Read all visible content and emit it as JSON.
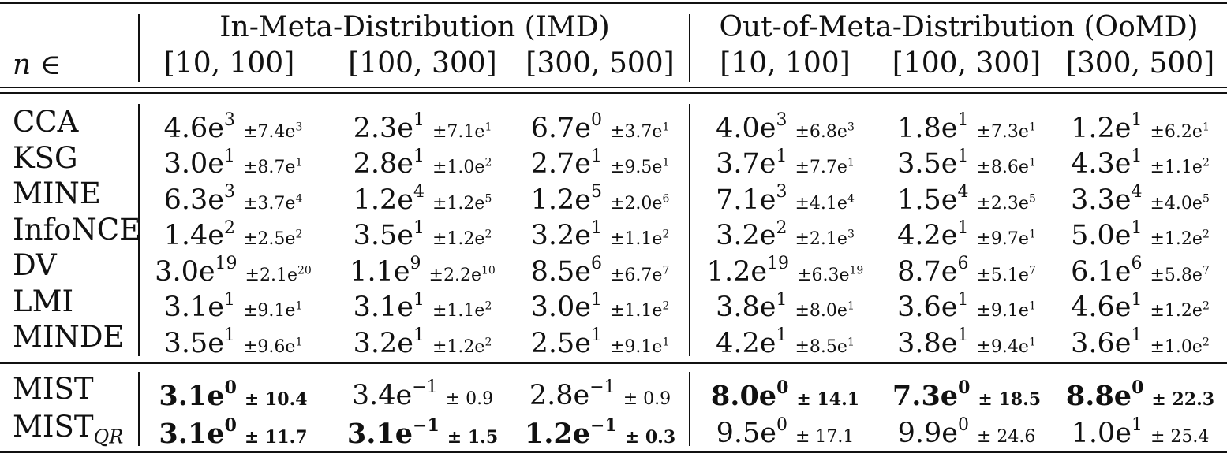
{
  "header": {
    "n_label": "n ∈",
    "imd_title": "In-Meta-Distribution (IMD)",
    "oomd_title": "Out-of-Meta-Distribution (OoMD)",
    "ranges": [
      "[10, 100]",
      "[100, 300]",
      "[300, 500]",
      "[10, 100]",
      "[100, 300]",
      "[300, 500]"
    ]
  },
  "baselines": [
    {
      "name": "CCA",
      "cells": [
        {
          "m": "4.6e",
          "me": "3",
          "s": "±7.4e",
          "se": "3"
        },
        {
          "m": "2.3e",
          "me": "1",
          "s": "±7.1e",
          "se": "1"
        },
        {
          "m": "6.7e",
          "me": "0",
          "s": "±3.7e",
          "se": "1"
        },
        {
          "m": "4.0e",
          "me": "3",
          "s": "±6.8e",
          "se": "3"
        },
        {
          "m": "1.8e",
          "me": "1",
          "s": "±7.3e",
          "se": "1"
        },
        {
          "m": "1.2e",
          "me": "1",
          "s": "±6.2e",
          "se": "1"
        }
      ]
    },
    {
      "name": "KSG",
      "cells": [
        {
          "m": "3.0e",
          "me": "1",
          "s": "±8.7e",
          "se": "1"
        },
        {
          "m": "2.8e",
          "me": "1",
          "s": "±1.0e",
          "se": "2"
        },
        {
          "m": "2.7e",
          "me": "1",
          "s": "±9.5e",
          "se": "1"
        },
        {
          "m": "3.7e",
          "me": "1",
          "s": "±7.7e",
          "se": "1"
        },
        {
          "m": "3.5e",
          "me": "1",
          "s": "±8.6e",
          "se": "1"
        },
        {
          "m": "4.3e",
          "me": "1",
          "s": "±1.1e",
          "se": "2"
        }
      ]
    },
    {
      "name": "MINE",
      "cells": [
        {
          "m": "6.3e",
          "me": "3",
          "s": "±3.7e",
          "se": "4"
        },
        {
          "m": "1.2e",
          "me": "4",
          "s": "±1.2e",
          "se": "5"
        },
        {
          "m": "1.2e",
          "me": "5",
          "s": "±2.0e",
          "se": "6"
        },
        {
          "m": "7.1e",
          "me": "3",
          "s": "±4.1e",
          "se": "4"
        },
        {
          "m": "1.5e",
          "me": "4",
          "s": "±2.3e",
          "se": "5"
        },
        {
          "m": "3.3e",
          "me": "4",
          "s": "±4.0e",
          "se": "5"
        }
      ]
    },
    {
      "name": "InfoNCE",
      "cells": [
        {
          "m": "1.4e",
          "me": "2",
          "s": "±2.5e",
          "se": "2"
        },
        {
          "m": "3.5e",
          "me": "1",
          "s": "±1.2e",
          "se": "2"
        },
        {
          "m": "3.2e",
          "me": "1",
          "s": "±1.1e",
          "se": "2"
        },
        {
          "m": "3.2e",
          "me": "2",
          "s": "±2.1e",
          "se": "3"
        },
        {
          "m": "4.2e",
          "me": "1",
          "s": "±9.7e",
          "se": "1"
        },
        {
          "m": "5.0e",
          "me": "1",
          "s": "±1.2e",
          "se": "2"
        }
      ]
    },
    {
      "name": "DV",
      "cells": [
        {
          "m": "3.0e",
          "me": "19",
          "s": "±2.1e",
          "se": "20"
        },
        {
          "m": "1.1e",
          "me": "9",
          "s": "±2.2e",
          "se": "10"
        },
        {
          "m": "8.5e",
          "me": "6",
          "s": "±6.7e",
          "se": "7"
        },
        {
          "m": "1.2e",
          "me": "19",
          "s": "±6.3e",
          "se": "19"
        },
        {
          "m": "8.7e",
          "me": "6",
          "s": "±5.1e",
          "se": "7"
        },
        {
          "m": "6.1e",
          "me": "6",
          "s": "±5.8e",
          "se": "7"
        }
      ]
    },
    {
      "name": "LMI",
      "cells": [
        {
          "m": "3.1e",
          "me": "1",
          "s": "±9.1e",
          "se": "1"
        },
        {
          "m": "3.1e",
          "me": "1",
          "s": "±1.1e",
          "se": "2"
        },
        {
          "m": "3.0e",
          "me": "1",
          "s": "±1.1e",
          "se": "2"
        },
        {
          "m": "3.8e",
          "me": "1",
          "s": "±8.0e",
          "se": "1"
        },
        {
          "m": "3.6e",
          "me": "1",
          "s": "±9.1e",
          "se": "1"
        },
        {
          "m": "4.6e",
          "me": "1",
          "s": "±1.2e",
          "se": "2"
        }
      ]
    },
    {
      "name": "MINDE",
      "cells": [
        {
          "m": "3.5e",
          "me": "1",
          "s": "±9.6e",
          "se": "1"
        },
        {
          "m": "3.2e",
          "me": "1",
          "s": "±1.2e",
          "se": "2"
        },
        {
          "m": "2.5e",
          "me": "1",
          "s": "±9.1e",
          "se": "1"
        },
        {
          "m": "4.2e",
          "me": "1",
          "s": "±8.5e",
          "se": "1"
        },
        {
          "m": "3.8e",
          "me": "1",
          "s": "±9.4e",
          "se": "1"
        },
        {
          "m": "3.6e",
          "me": "1",
          "s": "±1.0e",
          "se": "2"
        }
      ]
    }
  ],
  "ours": [
    {
      "name": "MIST",
      "sub": "",
      "cells": [
        {
          "m": "3.1e",
          "me": "0",
          "s": "± 10.4",
          "bold": true
        },
        {
          "m": "3.4e",
          "me": "−1",
          "s": "± 0.9",
          "bold": false
        },
        {
          "m": "2.8e",
          "me": "−1",
          "s": "± 0.9",
          "bold": false
        },
        {
          "m": "8.0e",
          "me": "0",
          "s": "± 14.1",
          "bold": true
        },
        {
          "m": "7.3e",
          "me": "0",
          "s": "± 18.5",
          "bold": true
        },
        {
          "m": "8.8e",
          "me": "0",
          "s": "± 22.3",
          "bold": true
        }
      ]
    },
    {
      "name": "MIST",
      "sub": "QR",
      "cells": [
        {
          "m": "3.1e",
          "me": "0",
          "s": "± 11.7",
          "bold": true
        },
        {
          "m": "3.1e",
          "me": "−1",
          "s": "± 1.5",
          "bold": true
        },
        {
          "m": "1.2e",
          "me": "−1",
          "s": "± 0.3",
          "bold": true
        },
        {
          "m": "9.5e",
          "me": "0",
          "s": "± 17.1",
          "bold": false
        },
        {
          "m": "9.9e",
          "me": "0",
          "s": "± 24.6",
          "bold": false
        },
        {
          "m": "1.0e",
          "me": "1",
          "s": "± 25.4",
          "bold": false
        }
      ]
    }
  ]
}
